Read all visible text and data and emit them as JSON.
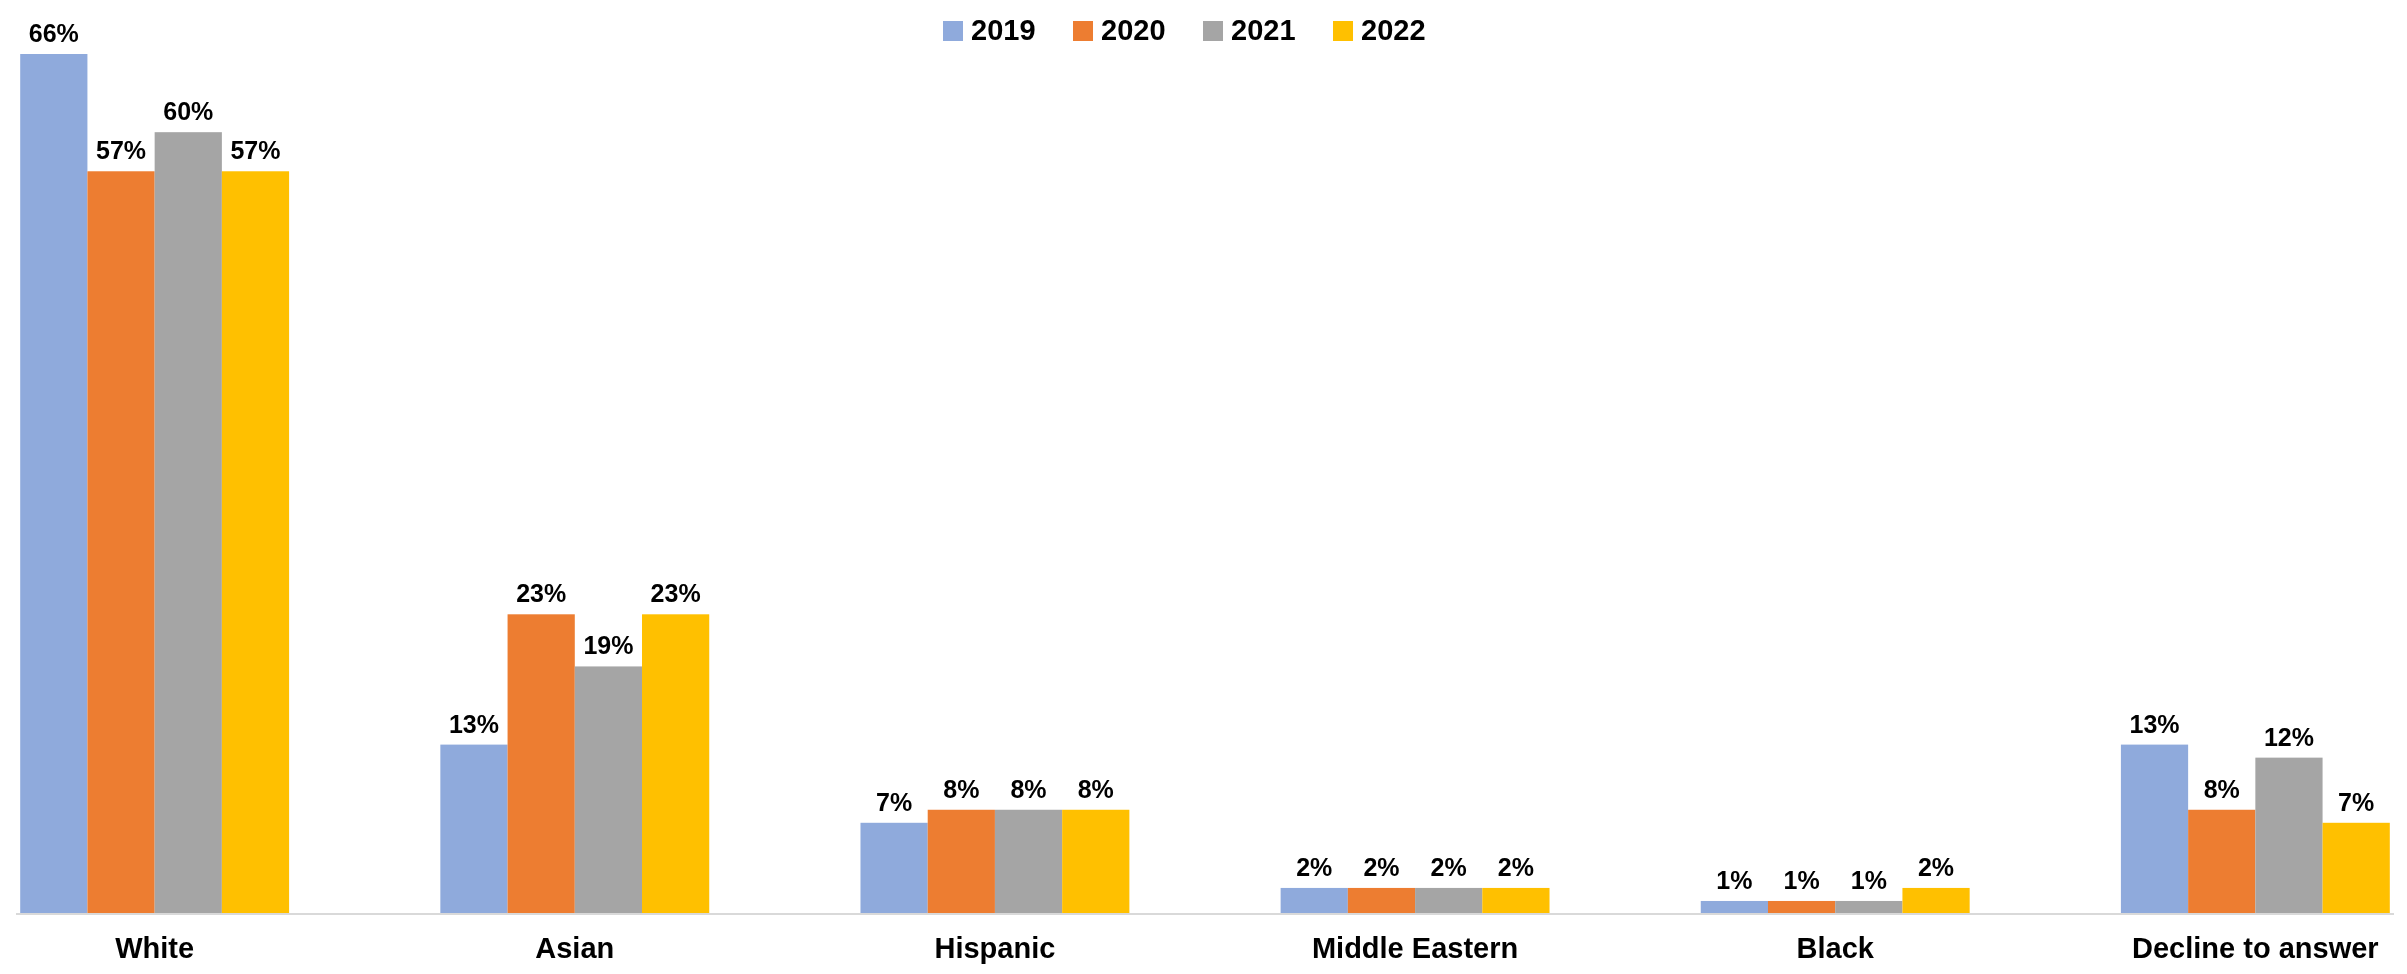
{
  "chart_data": {
    "type": "bar",
    "categories": [
      "White",
      "Asian",
      "Hispanic",
      "Middle Eastern",
      "Black",
      "Decline to answer"
    ],
    "series": [
      {
        "name": "2019",
        "color": "#8faadc",
        "values": [
          66,
          13,
          7,
          2,
          1,
          13
        ],
        "value_labels": [
          "66%",
          "13%",
          "7%",
          "2%",
          "1%",
          "13%"
        ]
      },
      {
        "name": "2020",
        "color": "#ed7d31",
        "values": [
          57,
          23,
          8,
          2,
          1,
          8
        ],
        "value_labels": [
          "57%",
          "23%",
          "8%",
          "2%",
          "1%",
          "8%"
        ]
      },
      {
        "name": "2021",
        "color": "#a5a5a5",
        "values": [
          60,
          19,
          8,
          2,
          1,
          12
        ],
        "value_labels": [
          "60%",
          "19%",
          "8%",
          "2%",
          "1%",
          "12%"
        ]
      },
      {
        "name": "2022",
        "color": "#ffc000",
        "values": [
          57,
          23,
          8,
          2,
          2,
          7
        ],
        "value_labels": [
          "57%",
          "23%",
          "8%",
          "2%",
          "2%",
          "7%"
        ]
      }
    ],
    "legend": "top"
  }
}
